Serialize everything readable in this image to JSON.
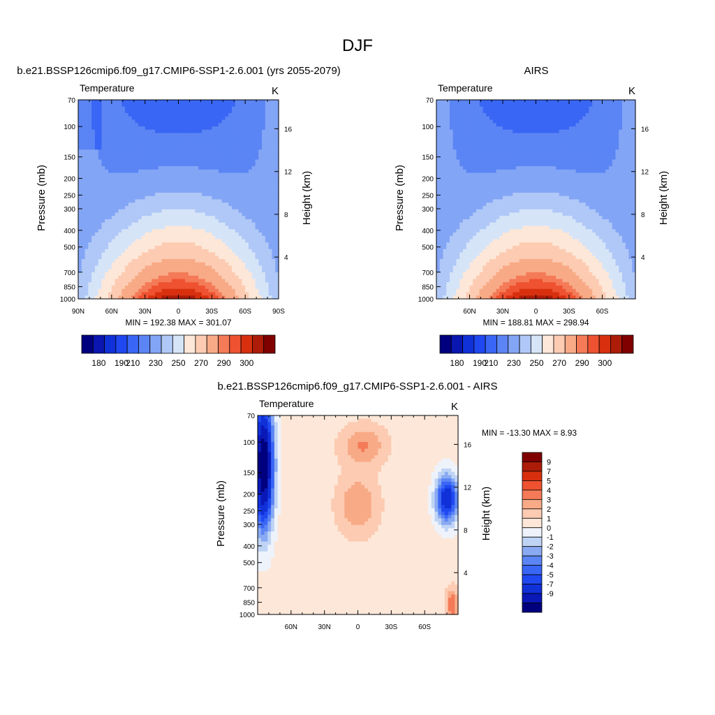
{
  "page": {
    "title": "DJF"
  },
  "colors": {
    "abs_scale": [
      "#00007f",
      "#0a16b0",
      "#1030d8",
      "#1f48f0",
      "#3a66f5",
      "#5b85f4",
      "#83a5f6",
      "#b0c8f7",
      "#d6e4f8",
      "#fde7d8",
      "#fccbb2",
      "#f8aa86",
      "#f47a58",
      "#ee5230",
      "#d8300f",
      "#ad1c08",
      "#800000"
    ],
    "diff_scale": [
      "#00007f",
      "#0a18b8",
      "#1030d8",
      "#1f48f0",
      "#3a66f5",
      "#5b85f4",
      "#89aaf2",
      "#bfd4f5",
      "#eef3fb",
      "#fde7d8",
      "#fccbb2",
      "#f8aa86",
      "#f47a58",
      "#ee5230",
      "#d8300f",
      "#ad1c08",
      "#800000"
    ]
  },
  "chart_data": [
    {
      "type": "heatmap",
      "title": "b.e21.BSSP126cmip6.f09_g17.CMIP6-SSP1-2.6.001 (yrs 2055-2079)",
      "left_label": "Temperature",
      "unit_label": "K",
      "ylabel": "Pressure (mb)",
      "ylabel_right": "Height (km)",
      "pressure_ticks": [
        "70",
        "100",
        "150",
        "200",
        "250",
        "300",
        "400",
        "500",
        "700",
        "850",
        "1000"
      ],
      "height_ticks": [
        "16",
        "12",
        "8",
        "4"
      ],
      "x_ticks": [
        "90N",
        "60N",
        "30N",
        "0",
        "30S",
        "60S",
        "90S"
      ],
      "stats_text": "MIN = 192.38  MAX = 301.07",
      "min": 192.38,
      "max": 301.07,
      "colorbar_labels": [
        "180",
        "190",
        "210",
        "230",
        "250",
        "270",
        "290",
        "300"
      ],
      "colorbar_levels": [
        180,
        185,
        190,
        200,
        210,
        220,
        230,
        240,
        250,
        260,
        270,
        280,
        285,
        290,
        295,
        300
      ]
    },
    {
      "type": "heatmap",
      "title": "AIRS",
      "left_label": "Temperature",
      "unit_label": "K",
      "ylabel": "Pressure (mb)",
      "ylabel_right": "Height (km)",
      "pressure_ticks": [
        "70",
        "100",
        "150",
        "200",
        "250",
        "300",
        "400",
        "500",
        "700",
        "850",
        "1000"
      ],
      "height_ticks": [
        "16",
        "12",
        "8",
        "4"
      ],
      "x_ticks": [
        "60N",
        "30N",
        "0",
        "30S",
        "60S"
      ],
      "stats_text": "MIN = 188.81  MAX = 298.94",
      "min": 188.81,
      "max": 298.94,
      "colorbar_labels": [
        "180",
        "190",
        "210",
        "230",
        "250",
        "270",
        "290",
        "300"
      ],
      "colorbar_levels": [
        180,
        185,
        190,
        200,
        210,
        220,
        230,
        240,
        250,
        260,
        270,
        280,
        285,
        290,
        295,
        300
      ]
    },
    {
      "type": "heatmap",
      "title": "b.e21.BSSP126cmip6.f09_g17.CMIP6-SSP1-2.6.001 - AIRS",
      "left_label": "Temperature",
      "unit_label": "K",
      "ylabel": "Pressure (mb)",
      "ylabel_right": "Height (km)",
      "pressure_ticks": [
        "70",
        "100",
        "150",
        "200",
        "250",
        "300",
        "400",
        "500",
        "700",
        "850",
        "1000"
      ],
      "height_ticks": [
        "16",
        "12",
        "8",
        "4"
      ],
      "x_ticks": [
        "60N",
        "30N",
        "0",
        "30S",
        "60S"
      ],
      "stats_text": "MIN = -13.30  MAX =   8.93",
      "min": -13.3,
      "max": 8.93,
      "colorbar_labels": [
        "9",
        "7",
        "5",
        "4",
        "3",
        "2",
        "1",
        "0",
        "-1",
        "-2",
        "-3",
        "-4",
        "-5",
        "-7",
        "-9"
      ],
      "colorbar_levels": [
        -9,
        -7,
        -5,
        -4,
        -3,
        -2,
        -1,
        0,
        1,
        2,
        3,
        4,
        5,
        7,
        9
      ]
    }
  ]
}
